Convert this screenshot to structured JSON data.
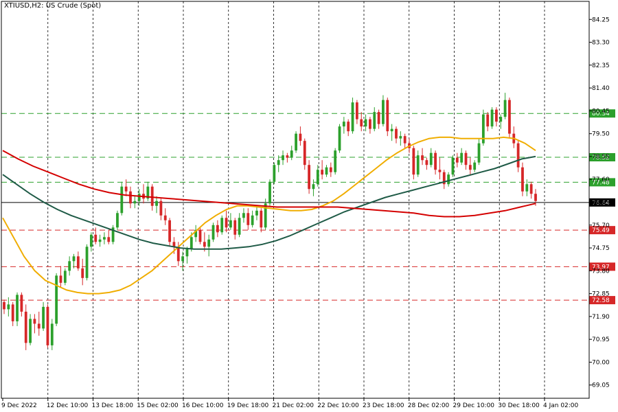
{
  "window": {
    "title": "XTIUSD,H2:  US Crude (Spot)"
  },
  "colors": {
    "background": "#ffffff",
    "bull": "#2ca02c",
    "bear": "#d62728",
    "ma_fast": "#f0ad00",
    "ma_mid": "#1e5a46",
    "ma_slow": "#d40000",
    "support": "#d62728",
    "resistance": "#2ca02c",
    "current": "#000000"
  },
  "chart_data": {
    "type": "candlestick",
    "title": "XTIUSD,H2:  US Crude (Spot)",
    "symbol": "XTIUSD",
    "timeframe": "H2",
    "ylim": [
      68.5,
      85.0
    ],
    "grid": true,
    "y_ticks": [
      "84.25",
      "83.30",
      "82.35",
      "81.40",
      "80.45",
      "79.50",
      "78.55",
      "77.60",
      "76.65",
      "75.70",
      "74.75",
      "73.80",
      "72.85",
      "71.90",
      "70.95",
      "70.00",
      "69.05"
    ],
    "y_tick_values": [
      84.25,
      83.3,
      82.35,
      81.4,
      80.45,
      79.5,
      78.55,
      77.6,
      76.65,
      75.7,
      74.75,
      73.8,
      72.85,
      71.9,
      70.95,
      70.0,
      69.05
    ],
    "x_ticks": [
      "9 Dec 2022",
      "12 Dec 10:00",
      "13 Dec 18:00",
      "15 Dec 02:00",
      "16 Dec 10:00",
      "19 Dec 18:00",
      "21 Dec 02:00",
      "22 Dec 10:00",
      "23 Dec 18:00",
      "28 Dec 02:00",
      "29 Dec 10:00",
      "30 Dec 18:00",
      "4 Jan 02:00"
    ],
    "levels": [
      {
        "value": 80.34,
        "label": "80.34",
        "kind": "resistance"
      },
      {
        "value": 78.52,
        "label": "78.52",
        "kind": "resistance"
      },
      {
        "value": 77.48,
        "label": "77.48",
        "kind": "resistance"
      },
      {
        "value": 75.49,
        "label": "75.49",
        "kind": "support"
      },
      {
        "value": 73.97,
        "label": "73.97",
        "kind": "support"
      },
      {
        "value": 72.58,
        "label": "72.58",
        "kind": "support"
      }
    ],
    "current_price": {
      "value": 76.64,
      "label": "76.64"
    },
    "candles": [
      [
        72.5,
        72.6,
        72.0,
        72.2
      ],
      [
        72.2,
        72.7,
        71.9,
        72.4
      ],
      [
        72.4,
        72.5,
        71.5,
        71.7
      ],
      [
        71.7,
        72.9,
        71.5,
        72.8
      ],
      [
        72.8,
        72.9,
        71.9,
        72.1
      ],
      [
        72.1,
        72.4,
        70.5,
        70.8
      ],
      [
        70.8,
        72.0,
        70.7,
        71.8
      ],
      [
        71.8,
        72.0,
        71.2,
        71.6
      ],
      [
        71.6,
        72.1,
        71.1,
        71.4
      ],
      [
        71.4,
        72.5,
        71.3,
        72.3
      ],
      [
        72.3,
        72.4,
        70.6,
        70.7
      ],
      [
        70.7,
        71.8,
        70.5,
        71.6
      ],
      [
        71.6,
        73.7,
        71.5,
        73.6
      ],
      [
        73.6,
        74.0,
        73.1,
        73.3
      ],
      [
        73.3,
        73.9,
        73.2,
        73.8
      ],
      [
        73.8,
        74.4,
        73.6,
        74.2
      ],
      [
        74.2,
        74.5,
        73.9,
        74.4
      ],
      [
        74.4,
        74.6,
        73.8,
        73.9
      ],
      [
        73.9,
        74.3,
        73.2,
        73.5
      ],
      [
        73.5,
        74.9,
        73.4,
        74.8
      ],
      [
        74.8,
        75.4,
        74.6,
        75.3
      ],
      [
        75.3,
        75.6,
        74.9,
        75.0
      ],
      [
        75.0,
        75.3,
        74.8,
        75.1
      ],
      [
        75.1,
        75.4,
        74.9,
        75.2
      ],
      [
        75.2,
        75.5,
        74.9,
        75.0
      ],
      [
        75.0,
        75.7,
        74.9,
        75.6
      ],
      [
        75.6,
        76.3,
        75.5,
        76.2
      ],
      [
        76.2,
        77.5,
        76.1,
        77.3
      ],
      [
        77.3,
        77.6,
        76.9,
        77.1
      ],
      [
        77.1,
        77.3,
        76.4,
        76.6
      ],
      [
        76.6,
        76.9,
        76.4,
        76.7
      ],
      [
        76.7,
        77.2,
        76.5,
        77.0
      ],
      [
        77.0,
        77.4,
        76.6,
        76.8
      ],
      [
        76.8,
        77.5,
        76.7,
        77.3
      ],
      [
        77.3,
        77.4,
        76.3,
        76.5
      ],
      [
        76.5,
        76.9,
        76.2,
        76.7
      ],
      [
        76.7,
        76.8,
        75.9,
        76.1
      ],
      [
        76.1,
        76.4,
        75.7,
        75.9
      ],
      [
        75.9,
        76.0,
        74.8,
        75.0
      ],
      [
        75.0,
        75.2,
        74.5,
        74.8
      ],
      [
        74.8,
        75.0,
        74.0,
        74.2
      ],
      [
        74.2,
        74.6,
        73.8,
        74.4
      ],
      [
        74.4,
        74.8,
        74.1,
        74.7
      ],
      [
        74.7,
        75.4,
        74.6,
        75.2
      ],
      [
        75.2,
        75.7,
        75.0,
        75.5
      ],
      [
        75.5,
        75.6,
        74.9,
        75.0
      ],
      [
        75.0,
        75.4,
        74.6,
        74.8
      ],
      [
        74.8,
        75.3,
        74.4,
        75.1
      ],
      [
        75.1,
        75.8,
        75.0,
        75.7
      ],
      [
        75.7,
        75.9,
        75.2,
        75.4
      ],
      [
        75.4,
        76.1,
        75.3,
        76.0
      ],
      [
        76.0,
        76.3,
        75.4,
        75.6
      ],
      [
        75.6,
        76.2,
        75.5,
        75.9
      ],
      [
        75.9,
        76.0,
        75.1,
        75.3
      ],
      [
        75.3,
        76.2,
        75.2,
        76.0
      ],
      [
        76.0,
        76.4,
        75.8,
        76.2
      ],
      [
        76.2,
        76.4,
        75.5,
        75.7
      ],
      [
        75.7,
        76.3,
        75.6,
        76.1
      ],
      [
        76.1,
        76.5,
        75.9,
        76.3
      ],
      [
        76.3,
        76.4,
        75.4,
        75.6
      ],
      [
        75.6,
        76.8,
        75.5,
        76.6
      ],
      [
        76.6,
        77.6,
        76.5,
        77.5
      ],
      [
        77.5,
        78.3,
        77.4,
        78.2
      ],
      [
        78.2,
        78.6,
        77.9,
        78.4
      ],
      [
        78.4,
        78.8,
        78.2,
        78.6
      ],
      [
        78.6,
        78.7,
        78.3,
        78.5
      ],
      [
        78.5,
        79.0,
        78.4,
        78.8
      ],
      [
        78.8,
        79.6,
        78.7,
        79.5
      ],
      [
        79.5,
        79.8,
        79.0,
        79.2
      ],
      [
        79.2,
        79.3,
        78.0,
        78.2
      ],
      [
        78.2,
        78.4,
        77.0,
        77.2
      ],
      [
        77.2,
        77.6,
        76.9,
        77.4
      ],
      [
        77.4,
        78.2,
        77.3,
        78.0
      ],
      [
        78.0,
        78.4,
        77.6,
        77.8
      ],
      [
        77.8,
        78.2,
        77.7,
        78.1
      ],
      [
        78.1,
        78.3,
        77.7,
        77.9
      ],
      [
        77.9,
        78.9,
        77.8,
        78.8
      ],
      [
        78.8,
        79.9,
        78.7,
        79.8
      ],
      [
        79.8,
        80.2,
        79.5,
        80.0
      ],
      [
        80.0,
        80.1,
        79.4,
        79.6
      ],
      [
        79.6,
        81.0,
        79.5,
        80.8
      ],
      [
        80.8,
        80.9,
        79.9,
        80.1
      ],
      [
        80.1,
        80.4,
        79.6,
        79.8
      ],
      [
        79.8,
        80.3,
        79.6,
        80.1
      ],
      [
        80.1,
        80.2,
        79.5,
        79.7
      ],
      [
        79.7,
        80.6,
        79.6,
        80.4
      ],
      [
        80.4,
        80.5,
        79.7,
        79.9
      ],
      [
        79.9,
        81.1,
        79.8,
        80.9
      ],
      [
        80.9,
        81.0,
        79.4,
        79.6
      ],
      [
        79.6,
        79.9,
        79.2,
        79.7
      ],
      [
        79.7,
        79.8,
        79.1,
        79.3
      ],
      [
        79.3,
        79.6,
        79.0,
        79.4
      ],
      [
        79.4,
        79.5,
        78.9,
        79.1
      ],
      [
        79.1,
        79.3,
        78.7,
        78.9
      ],
      [
        78.9,
        79.0,
        77.6,
        77.8
      ],
      [
        77.8,
        78.8,
        77.7,
        78.6
      ],
      [
        78.6,
        78.9,
        78.2,
        78.4
      ],
      [
        78.4,
        78.5,
        78.0,
        78.2
      ],
      [
        78.2,
        78.9,
        78.1,
        78.7
      ],
      [
        78.7,
        78.8,
        77.8,
        78.0
      ],
      [
        78.0,
        78.5,
        77.6,
        77.9
      ],
      [
        77.9,
        78.0,
        77.2,
        77.4
      ],
      [
        77.4,
        77.9,
        77.3,
        77.8
      ],
      [
        77.8,
        78.6,
        77.7,
        78.5
      ],
      [
        78.5,
        78.7,
        78.1,
        78.3
      ],
      [
        78.3,
        78.9,
        78.2,
        78.7
      ],
      [
        78.7,
        78.8,
        78.0,
        78.2
      ],
      [
        78.2,
        78.5,
        77.8,
        78.0
      ],
      [
        78.0,
        78.4,
        77.9,
        78.3
      ],
      [
        78.3,
        79.3,
        78.2,
        79.1
      ],
      [
        79.1,
        80.5,
        79.0,
        80.3
      ],
      [
        80.3,
        80.4,
        79.6,
        79.8
      ],
      [
        79.8,
        80.6,
        79.7,
        80.5
      ],
      [
        80.5,
        80.6,
        79.8,
        80.0
      ],
      [
        80.0,
        80.3,
        79.7,
        80.2
      ],
      [
        80.2,
        81.2,
        80.1,
        80.9
      ],
      [
        80.9,
        81.0,
        79.3,
        79.5
      ],
      [
        79.5,
        79.8,
        78.9,
        79.1
      ],
      [
        79.1,
        79.2,
        77.9,
        78.1
      ],
      [
        78.1,
        78.3,
        76.9,
        77.1
      ],
      [
        77.1,
        77.6,
        76.9,
        77.4
      ],
      [
        77.4,
        77.5,
        76.8,
        77.0
      ],
      [
        77.0,
        77.2,
        76.5,
        76.7
      ]
    ],
    "series": [
      {
        "name": "MA fast",
        "color_key": "ma_fast",
        "values": [
          76.0,
          75.2,
          74.4,
          73.8,
          73.4,
          73.2,
          73.0,
          72.9,
          72.85,
          72.85,
          72.9,
          73.0,
          73.2,
          73.5,
          73.8,
          74.2,
          74.6,
          75.0,
          75.4,
          75.8,
          76.1,
          76.35,
          76.5,
          76.5,
          76.45,
          76.4,
          76.35,
          76.3,
          76.3,
          76.35,
          76.5,
          76.7,
          77.0,
          77.35,
          77.7,
          78.05,
          78.4,
          78.7,
          78.95,
          79.15,
          79.3,
          79.35,
          79.35,
          79.3,
          79.3,
          79.3,
          79.3,
          79.35,
          79.3,
          79.1,
          78.8
        ]
      },
      {
        "name": "MA mid",
        "color_key": "ma_mid",
        "values": [
          77.8,
          77.4,
          77.0,
          76.65,
          76.35,
          76.1,
          75.9,
          75.7,
          75.5,
          75.3,
          75.1,
          74.95,
          74.85,
          74.75,
          74.7,
          74.7,
          74.7,
          74.75,
          74.8,
          74.9,
          75.05,
          75.25,
          75.5,
          75.75,
          76.0,
          76.25,
          76.45,
          76.65,
          76.85,
          77.0,
          77.15,
          77.3,
          77.45,
          77.6,
          77.75,
          77.9,
          78.05,
          78.25,
          78.45,
          78.55
        ]
      },
      {
        "name": "MA slow",
        "color_key": "ma_slow",
        "values": [
          78.8,
          78.45,
          78.15,
          77.9,
          77.65,
          77.4,
          77.2,
          77.05,
          76.95,
          76.9,
          76.85,
          76.8,
          76.75,
          76.7,
          76.65,
          76.6,
          76.55,
          76.5,
          76.45,
          76.45,
          76.45,
          76.45,
          76.45,
          76.4,
          76.35,
          76.3,
          76.25,
          76.2,
          76.1,
          76.05,
          76.05,
          76.1,
          76.2,
          76.3,
          76.45,
          76.6
        ]
      }
    ]
  }
}
